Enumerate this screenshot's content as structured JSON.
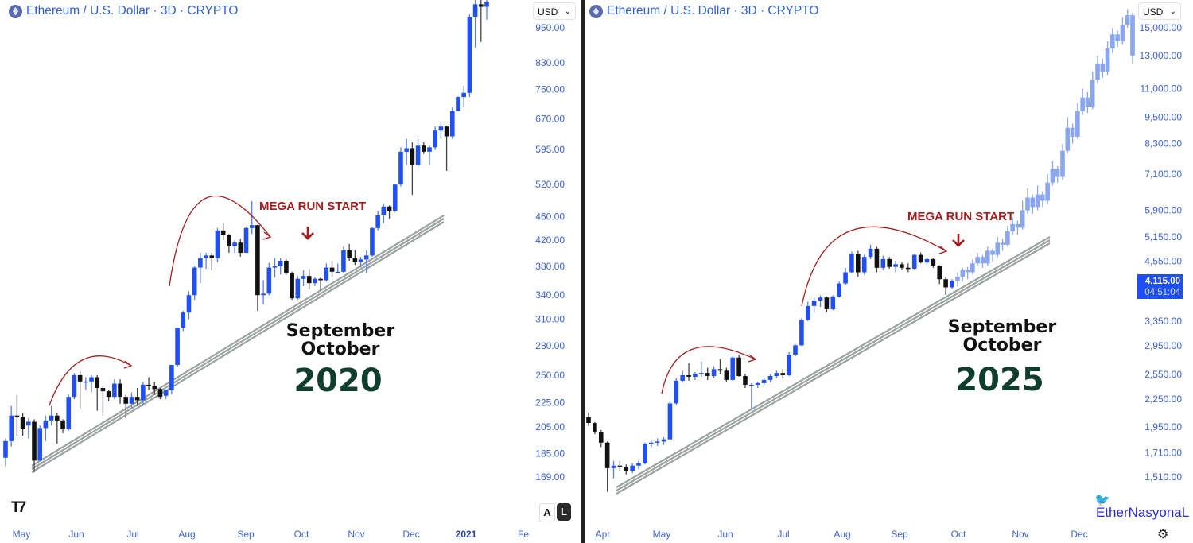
{
  "header": {
    "left_title": "Ethereum / U.S. Dollar · 3D · CRYPTO",
    "right_title": "Ethereum / U.S. Dollar · 3D · CRYPTO",
    "currency": "USD"
  },
  "annotations": {
    "left": {
      "mega_run": "MEGA RUN START",
      "month1": "September",
      "month2": "October",
      "year": "2020"
    },
    "right": {
      "mega_run": "MEGA RUN START",
      "month1": "September",
      "month2": "October",
      "year": "2025"
    }
  },
  "scale_buttons": {
    "auto": "A",
    "log": "L"
  },
  "last_price": {
    "value": "4,115.00",
    "countdown": "04:51:04"
  },
  "watermark": "EtherNasyonaL",
  "colors": {
    "up": "#1f4ff5",
    "down": "#111111",
    "projection": "#8aa6f0",
    "axis_text": "#3d63d8",
    "annotation_red": "#a51c1c",
    "year_green": "#0f3d2e",
    "trendline": "#9aa39d"
  },
  "icons": {
    "logo": "tradingview-logo",
    "symbol": "ethereum-icon",
    "twitter": "twitter-bird-icon",
    "settings": "gear-icon"
  },
  "chart_data": [
    {
      "type": "candlestick",
      "title": "Ethereum / U.S. Dollar · 3D · CRYPTO",
      "scale": "log",
      "ylim": [
        150,
        1060
      ],
      "y_ticks": [
        950,
        830,
        750,
        670,
        595,
        520,
        460,
        420,
        380,
        340,
        310,
        280,
        250,
        225,
        205,
        185,
        169
      ],
      "y_tick_labels": [
        "950.00",
        "830.00",
        "750.00",
        "670.00",
        "595.00",
        "520.00",
        "460.00",
        "420.00",
        "380.00",
        "340.00",
        "310.00",
        "280.00",
        "250.00",
        "225.00",
        "205.00",
        "185.00",
        "169.00"
      ],
      "x_tick_labels": [
        "May",
        "Jun",
        "Jul",
        "Aug",
        "Sep",
        "Oct",
        "Nov",
        "Dec",
        "2021",
        "Fe"
      ],
      "ohlc": [
        [
          182,
          196,
          176,
          194
        ],
        [
          194,
          222,
          190,
          214
        ],
        [
          214,
          232,
          198,
          213
        ],
        [
          213,
          216,
          198,
          203
        ],
        [
          206,
          212,
          196,
          209
        ],
        [
          209,
          211,
          172,
          180
        ],
        [
          180,
          206,
          180,
          204
        ],
        [
          204,
          214,
          194,
          210
        ],
        [
          210,
          222,
          206,
          214
        ],
        [
          214,
          216,
          192,
          210
        ],
        [
          210,
          211,
          200,
          203
        ],
        [
          203,
          232,
          202,
          230
        ],
        [
          230,
          252,
          228,
          250
        ],
        [
          250,
          254,
          220,
          244
        ],
        [
          244,
          248,
          236,
          244
        ],
        [
          244,
          250,
          234,
          248
        ],
        [
          248,
          250,
          218,
          238
        ],
        [
          238,
          240,
          214,
          235
        ],
        [
          235,
          236,
          226,
          230
        ],
        [
          230,
          246,
          228,
          242
        ],
        [
          242,
          246,
          224,
          230
        ],
        [
          230,
          232,
          212,
          224
        ],
        [
          224,
          234,
          220,
          230
        ],
        [
          230,
          238,
          222,
          227
        ],
        [
          227,
          244,
          222,
          241
        ],
        [
          241,
          248,
          236,
          240
        ],
        [
          240,
          244,
          232,
          237
        ],
        [
          237,
          238,
          228,
          230
        ],
        [
          231,
          236,
          228,
          236
        ],
        [
          236,
          260,
          232,
          260
        ],
        [
          260,
          300,
          258,
          300
        ],
        [
          300,
          320,
          296,
          318
        ],
        [
          318,
          345,
          310,
          340
        ],
        [
          340,
          380,
          334,
          378
        ],
        [
          378,
          400,
          356,
          392
        ],
        [
          392,
          400,
          376,
          396
        ],
        [
          396,
          400,
          374,
          392
        ],
        [
          392,
          440,
          386,
          436
        ],
        [
          436,
          448,
          420,
          428
        ],
        [
          428,
          430,
          400,
          410
        ],
        [
          410,
          420,
          400,
          416
        ],
        [
          416,
          422,
          394,
          400
        ],
        [
          400,
          442,
          400,
          440
        ],
        [
          440,
          488,
          430,
          445
        ],
        [
          445,
          445,
          320,
          340
        ],
        [
          340,
          360,
          328,
          342
        ],
        [
          342,
          385,
          340,
          378
        ],
        [
          378,
          392,
          364,
          380
        ],
        [
          380,
          392,
          368,
          388
        ],
        [
          388,
          390,
          368,
          370
        ],
        [
          370,
          372,
          334,
          336
        ],
        [
          336,
          366,
          334,
          362
        ],
        [
          362,
          374,
          352,
          366
        ],
        [
          366,
          376,
          348,
          356
        ],
        [
          356,
          364,
          352,
          362
        ],
        [
          362,
          364,
          346,
          360
        ],
        [
          360,
          384,
          358,
          378
        ],
        [
          378,
          388,
          365,
          372
        ],
        [
          372,
          384,
          370,
          372
        ],
        [
          372,
          410,
          370,
          404
        ],
        [
          404,
          414,
          388,
          392
        ],
        [
          392,
          404,
          382,
          386
        ],
        [
          386,
          394,
          378,
          390
        ],
        [
          390,
          404,
          370,
          396
        ],
        [
          396,
          442,
          394,
          440
        ],
        [
          440,
          470,
          436,
          462
        ],
        [
          462,
          484,
          448,
          478
        ],
        [
          478,
          480,
          456,
          470
        ],
        [
          470,
          520,
          468,
          520
        ],
        [
          520,
          600,
          516,
          590
        ],
        [
          590,
          620,
          560,
          598
        ],
        [
          598,
          612,
          500,
          560
        ],
        [
          560,
          620,
          556,
          604
        ],
        [
          604,
          612,
          585,
          590
        ],
        [
          590,
          604,
          560,
          600
        ],
        [
          600,
          650,
          594,
          640
        ],
        [
          640,
          660,
          620,
          650
        ],
        [
          650,
          652,
          548,
          626
        ],
        [
          626,
          700,
          620,
          690
        ],
        [
          690,
          730,
          690,
          728
        ],
        [
          728,
          760,
          700,
          740
        ],
        [
          740,
          1000,
          728,
          990
        ],
        [
          990,
          1150,
          880,
          1040
        ],
        [
          1040,
          1060,
          900,
          1030
        ],
        [
          1030,
          1070,
          980,
          1050
        ]
      ],
      "trendline": "rising support"
    },
    {
      "type": "candlestick",
      "title": "Ethereum / U.S. Dollar · 3D · CRYPTO",
      "scale": "log",
      "ylim": [
        1350,
        17000
      ],
      "y_ticks": [
        15000,
        13000,
        11000,
        9500,
        8300,
        7100,
        5900,
        5150,
        4550,
        3350,
        2950,
        2550,
        2250,
        1950,
        1710,
        1510
      ],
      "y_tick_labels": [
        "15,000.00",
        "13,000.00",
        "11,000.00",
        "9,500.00",
        "8,300.00",
        "7,100.00",
        "5,900.00",
        "5,150.00",
        "4,550.00",
        "3,350.00",
        "2,950.00",
        "2,550.00",
        "2,250.00",
        "1,950.00",
        "1,710.00",
        "1,510.00"
      ],
      "x_tick_labels": [
        "Apr",
        "May",
        "Jun",
        "Jul",
        "Aug",
        "Sep",
        "Oct",
        "Nov",
        "Dec"
      ],
      "ohlc": [
        [
          2050,
          2100,
          1960,
          1990
        ],
        [
          1990,
          2000,
          1880,
          1900
        ],
        [
          1900,
          1920,
          1760,
          1800
        ],
        [
          1800,
          1810,
          1400,
          1580
        ],
        [
          1580,
          1640,
          1500,
          1600
        ],
        [
          1600,
          1640,
          1560,
          1590
        ],
        [
          1590,
          1610,
          1530,
          1560
        ],
        [
          1560,
          1620,
          1540,
          1600
        ],
        [
          1600,
          1640,
          1570,
          1620
        ],
        [
          1620,
          1800,
          1610,
          1790
        ],
        [
          1790,
          1830,
          1760,
          1800
        ],
        [
          1800,
          1840,
          1770,
          1810
        ],
        [
          1810,
          1850,
          1780,
          1830
        ],
        [
          1830,
          2230,
          1820,
          2200
        ],
        [
          2200,
          2500,
          2180,
          2470
        ],
        [
          2470,
          2600,
          2450,
          2540
        ],
        [
          2540,
          2700,
          2470,
          2520
        ],
        [
          2520,
          2580,
          2480,
          2560
        ],
        [
          2560,
          2720,
          2520,
          2570
        ],
        [
          2570,
          2640,
          2480,
          2530
        ],
        [
          2530,
          2660,
          2500,
          2620
        ],
        [
          2620,
          2760,
          2560,
          2600
        ],
        [
          2600,
          2640,
          2460,
          2480
        ],
        [
          2480,
          2800,
          2470,
          2780
        ],
        [
          2780,
          2820,
          2520,
          2530
        ],
        [
          2530,
          2560,
          2380,
          2420
        ],
        [
          2420,
          2440,
          2130,
          2420
        ],
        [
          2420,
          2460,
          2380,
          2440
        ],
        [
          2440,
          2500,
          2420,
          2480
        ],
        [
          2480,
          2560,
          2450,
          2530
        ],
        [
          2530,
          2600,
          2500,
          2570
        ],
        [
          2570,
          2620,
          2500,
          2540
        ],
        [
          2540,
          2860,
          2530,
          2820
        ],
        [
          2820,
          2980,
          2800,
          2960
        ],
        [
          2960,
          3400,
          2950,
          3370
        ],
        [
          3370,
          3700,
          3350,
          3620
        ],
        [
          3620,
          3780,
          3500,
          3720
        ],
        [
          3720,
          3820,
          3600,
          3780
        ],
        [
          3780,
          3800,
          3500,
          3560
        ],
        [
          3560,
          3820,
          3540,
          3800
        ],
        [
          3800,
          4100,
          3780,
          4060
        ],
        [
          4060,
          4400,
          4020,
          4300
        ],
        [
          4300,
          4780,
          4280,
          4720
        ],
        [
          4720,
          4800,
          4200,
          4300
        ],
        [
          4300,
          4700,
          4250,
          4650
        ],
        [
          4650,
          4950,
          4600,
          4850
        ],
        [
          4850,
          4900,
          4300,
          4400
        ],
        [
          4400,
          4680,
          4350,
          4600
        ],
        [
          4600,
          4650,
          4380,
          4420
        ],
        [
          4420,
          4560,
          4300,
          4480
        ],
        [
          4480,
          4520,
          4350,
          4400
        ],
        [
          4400,
          4500,
          4300,
          4380
        ],
        [
          4380,
          4720,
          4360,
          4700
        ],
        [
          4700,
          4760,
          4500,
          4520
        ],
        [
          4520,
          4640,
          4460,
          4600
        ],
        [
          4600,
          4620,
          4400,
          4450
        ],
        [
          4450,
          4460,
          4050,
          4150
        ],
        [
          4150,
          4200,
          3830,
          3980
        ],
        [
          3980,
          4150,
          3950,
          4115
        ]
      ],
      "projection_ohlc": [
        [
          4115,
          4300,
          4000,
          4200
        ],
        [
          4200,
          4400,
          4100,
          4350
        ],
        [
          4350,
          4420,
          4150,
          4300
        ],
        [
          4300,
          4600,
          4250,
          4500
        ],
        [
          4500,
          4750,
          4450,
          4650
        ],
        [
          4650,
          4700,
          4400,
          4500
        ],
        [
          4500,
          4900,
          4450,
          4800
        ],
        [
          4800,
          4850,
          4550,
          4700
        ],
        [
          4700,
          5150,
          4650,
          5000
        ],
        [
          5000,
          5100,
          4800,
          4950
        ],
        [
          4950,
          5450,
          4900,
          5300
        ],
        [
          5300,
          5700,
          5200,
          5500
        ],
        [
          5500,
          5600,
          5200,
          5400
        ],
        [
          5400,
          6200,
          5350,
          5900
        ],
        [
          5900,
          6600,
          5800,
          6300
        ],
        [
          6300,
          6400,
          5800,
          6000
        ],
        [
          6000,
          6700,
          5900,
          6400
        ],
        [
          6400,
          6500,
          6000,
          6200
        ],
        [
          6200,
          7100,
          6100,
          6800
        ],
        [
          6800,
          7600,
          6700,
          7300
        ],
        [
          7300,
          7400,
          6800,
          7000
        ],
        [
          7000,
          8300,
          6900,
          8000
        ],
        [
          8000,
          9500,
          7900,
          9000
        ],
        [
          9000,
          9200,
          8300,
          8600
        ],
        [
          8600,
          10200,
          8500,
          9800
        ],
        [
          9800,
          11000,
          9600,
          10500
        ],
        [
          10500,
          10800,
          9700,
          10000
        ],
        [
          10000,
          12000,
          9900,
          11500
        ],
        [
          11500,
          13000,
          11300,
          12500
        ],
        [
          12500,
          12800,
          11600,
          12000
        ],
        [
          12000,
          14000,
          11800,
          13500
        ],
        [
          13500,
          15000,
          13200,
          14500
        ],
        [
          14500,
          14800,
          13600,
          14000
        ],
        [
          14000,
          15800,
          13800,
          15200
        ],
        [
          15200,
          16500,
          15000,
          16000
        ],
        [
          16000,
          16200,
          12500,
          13000
        ]
      ],
      "last_price": 4115,
      "trendline": "rising support"
    }
  ]
}
